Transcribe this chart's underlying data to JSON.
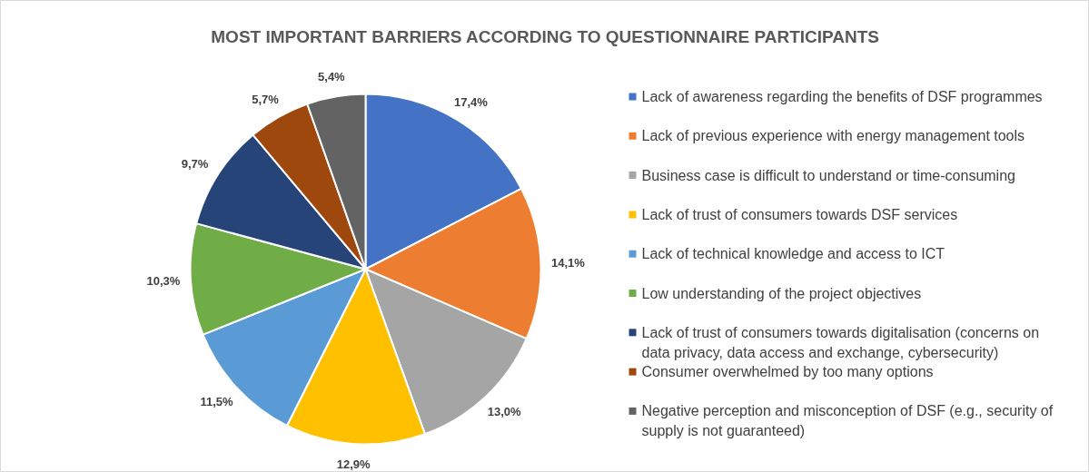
{
  "chart_data": {
    "type": "pie",
    "title": "MOST IMPORTANT BARRIERS ACCORDING TO QUESTIONNAIRE PARTICIPANTS",
    "categories": [
      "Lack of awareness regarding the benefits of DSF programmes",
      "Lack of previous experience with energy management tools",
      "Business case is difficult to understand or time-consuming",
      "Lack of trust of consumers towards DSF services",
      "Lack of technical knowledge and access to ICT",
      "Low understanding of the project objectives",
      "Lack of trust of consumers towards digitalisation (concerns on data privacy, data access and exchange, cybersecurity)",
      "Consumer overwhelmed by too many options",
      "Negative perception and misconception of DSF (e.g., security of supply is not guaranteed)"
    ],
    "values": [
      17.4,
      14.1,
      13.0,
      12.9,
      11.5,
      10.3,
      9.7,
      5.7,
      5.4
    ],
    "value_labels": [
      "17,4%",
      "14,1%",
      "13,0%",
      "12,9%",
      "11,5%",
      "10,3%",
      "9,7%",
      "5,7%",
      "5,4%"
    ],
    "colors": [
      "#4472c4",
      "#ed7d31",
      "#a5a5a5",
      "#ffc000",
      "#5b9bd5",
      "#70ad47",
      "#264478",
      "#9e480e",
      "#636363"
    ],
    "legend": "right"
  }
}
